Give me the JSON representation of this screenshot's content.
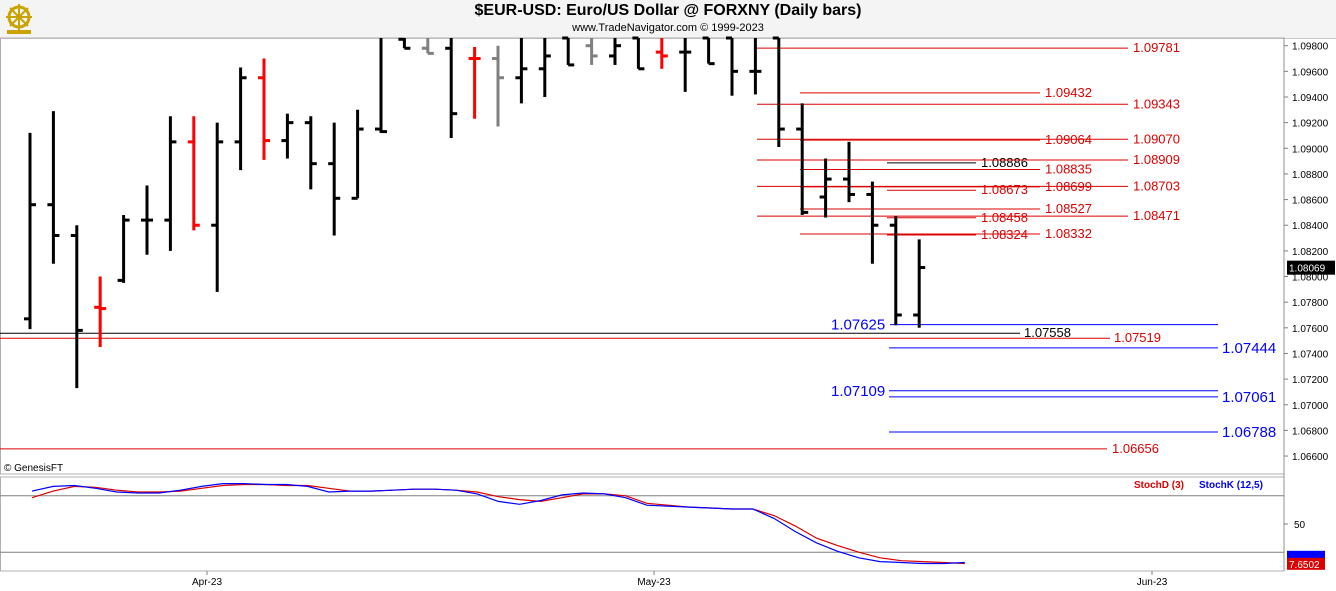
{
  "header": {
    "title": "$EUR-USD:  Euro/US Dollar @ FORXNY  (Daily bars)",
    "subtitle": "www.TradeNavigator.com © 1999-2023",
    "logo_icon": "ship-wheel-icon"
  },
  "copyright": "© GenesisFT",
  "colors": {
    "up": "#000000",
    "down": "#ff0000",
    "neutral": "#808080",
    "blue": "#0000ff",
    "red": "#dd0000"
  },
  "chart_data": [
    {
      "type": "ohlc",
      "title": "$EUR-USD:  Euro/US Dollar @ FORXNY  (Daily bars)",
      "ylim": [
        1.0646,
        1.0986
      ],
      "y_ticks": [
        "1.09800",
        "1.09600",
        "1.09400",
        "1.09200",
        "1.09000",
        "1.08800",
        "1.08600",
        "1.08400",
        "1.08200",
        "1.08000",
        "1.07800",
        "1.07600",
        "1.07400",
        "1.07200",
        "1.07000",
        "1.06800",
        "1.06600"
      ],
      "last_price": "1.08069",
      "x_labels": [
        "Apr-23",
        "May-23",
        "Jun-23"
      ],
      "bars": [
        {
          "o": 1.0767,
          "h": 1.0912,
          "l": 1.0759,
          "c": 1.0856,
          "color": "up"
        },
        {
          "o": 1.0856,
          "h": 1.0929,
          "l": 1.081,
          "c": 1.0832,
          "color": "up"
        },
        {
          "o": 1.0832,
          "h": 1.084,
          "l": 1.0713,
          "c": 1.0758,
          "color": "up"
        },
        {
          "o": 1.0776,
          "h": 1.08,
          "l": 1.0745,
          "c": 1.0775,
          "color": "down"
        },
        {
          "o": 1.0797,
          "h": 1.0848,
          "l": 1.0795,
          "c": 1.0844,
          "color": "up"
        },
        {
          "o": 1.0844,
          "h": 1.0871,
          "l": 1.0817,
          "c": 1.0844,
          "color": "up"
        },
        {
          "o": 1.0844,
          "h": 1.0925,
          "l": 1.082,
          "c": 1.0905,
          "color": "up"
        },
        {
          "o": 1.0905,
          "h": 1.0925,
          "l": 1.0836,
          "c": 1.084,
          "color": "down"
        },
        {
          "o": 1.084,
          "h": 1.092,
          "l": 1.0788,
          "c": 1.0905,
          "color": "up"
        },
        {
          "o": 1.0905,
          "h": 1.0963,
          "l": 1.0883,
          "c": 1.0955,
          "color": "up"
        },
        {
          "o": 1.0955,
          "h": 1.097,
          "l": 1.0891,
          "c": 1.0906,
          "color": "down"
        },
        {
          "o": 1.0906,
          "h": 1.0927,
          "l": 1.0892,
          "c": 1.092,
          "color": "up"
        },
        {
          "o": 1.092,
          "h": 1.0925,
          "l": 1.0868,
          "c": 1.0888,
          "color": "up"
        },
        {
          "o": 1.0888,
          "h": 1.092,
          "l": 1.0832,
          "c": 1.0861,
          "color": "up"
        },
        {
          "o": 1.0861,
          "h": 1.093,
          "l": 1.0861,
          "c": 1.0915,
          "color": "up"
        },
        {
          "o": 1.0915,
          "h": 1.0986,
          "l": 1.0912,
          "c": 1.0913,
          "color": "up"
        },
        {
          "o": 1.0985,
          "h": 1.0986,
          "l": 1.0978,
          "c": 1.0978,
          "color": "up"
        },
        {
          "o": 1.0978,
          "h": 1.0986,
          "l": 1.0974,
          "c": 1.0974,
          "color": "neutral"
        },
        {
          "o": 1.0978,
          "h": 1.0986,
          "l": 1.0908,
          "c": 1.0927,
          "color": "up"
        },
        {
          "o": 1.097,
          "h": 1.0979,
          "l": 1.0923,
          "c": 1.097,
          "color": "down"
        },
        {
          "o": 1.097,
          "h": 1.098,
          "l": 1.0917,
          "c": 1.0955,
          "color": "neutral"
        },
        {
          "o": 1.0955,
          "h": 1.0986,
          "l": 1.0935,
          "c": 1.0962,
          "color": "up"
        },
        {
          "o": 1.0962,
          "h": 1.0986,
          "l": 1.094,
          "c": 1.0972,
          "color": "up"
        },
        {
          "o": 1.0986,
          "h": 1.0986,
          "l": 1.0965,
          "c": 1.0965,
          "color": "up"
        },
        {
          "o": 1.098,
          "h": 1.0986,
          "l": 1.0965,
          "c": 1.0972,
          "color": "neutral"
        },
        {
          "o": 1.0972,
          "h": 1.0986,
          "l": 1.0965,
          "c": 1.098,
          "color": "up"
        },
        {
          "o": 1.0986,
          "h": 1.0986,
          "l": 1.0962,
          "c": 1.0962,
          "color": "up"
        },
        {
          "o": 1.0975,
          "h": 1.0986,
          "l": 1.0962,
          "c": 1.0972,
          "color": "down"
        },
        {
          "o": 1.0975,
          "h": 1.0986,
          "l": 1.0944,
          "c": 1.0975,
          "color": "up"
        },
        {
          "o": 1.0986,
          "h": 1.0986,
          "l": 1.0966,
          "c": 1.0966,
          "color": "up"
        },
        {
          "o": 1.0986,
          "h": 1.0986,
          "l": 1.0941,
          "c": 1.096,
          "color": "up"
        },
        {
          "o": 1.096,
          "h": 1.0986,
          "l": 1.0942,
          "c": 1.096,
          "color": "up"
        },
        {
          "o": 1.0986,
          "h": 1.0986,
          "l": 1.0901,
          "c": 1.0915,
          "color": "up"
        },
        {
          "o": 1.0915,
          "h": 1.0935,
          "l": 1.0848,
          "c": 1.085,
          "color": "up"
        },
        {
          "o": 1.0862,
          "h": 1.0892,
          "l": 1.0846,
          "c": 1.0876,
          "color": "up"
        },
        {
          "o": 1.0876,
          "h": 1.0905,
          "l": 1.0858,
          "c": 1.0864,
          "color": "up"
        },
        {
          "o": 1.0864,
          "h": 1.0874,
          "l": 1.081,
          "c": 1.084,
          "color": "up"
        },
        {
          "o": 1.084,
          "h": 1.0847,
          "l": 1.0762,
          "c": 1.077,
          "color": "up"
        },
        {
          "o": 1.077,
          "h": 1.0829,
          "l": 1.076,
          "c": 1.0807,
          "color": "up"
        }
      ],
      "levels": [
        {
          "price": 1.09781,
          "label": "1.09781",
          "color": "red"
        },
        {
          "price": 1.09432,
          "label": "1.09432",
          "color": "red"
        },
        {
          "price": 1.09343,
          "label": "1.09343",
          "color": "red"
        },
        {
          "price": 1.09064,
          "label": "1.09064",
          "color": "red"
        },
        {
          "price": 1.0907,
          "label": "1.09070",
          "color": "red"
        },
        {
          "price": 1.08886,
          "label": "1.08886",
          "color": "black"
        },
        {
          "price": 1.08909,
          "label": "1.08909",
          "color": "red"
        },
        {
          "price": 1.08835,
          "label": "1.08835",
          "color": "red"
        },
        {
          "price": 1.08673,
          "label": "1.08673",
          "color": "red"
        },
        {
          "price": 1.08699,
          "label": "1.08699",
          "color": "red"
        },
        {
          "price": 1.08703,
          "label": "1.08703",
          "color": "red"
        },
        {
          "price": 1.08527,
          "label": "1.08527",
          "color": "red"
        },
        {
          "price": 1.08458,
          "label": "1.08458",
          "color": "red"
        },
        {
          "price": 1.08471,
          "label": "1.08471",
          "color": "red"
        },
        {
          "price": 1.08324,
          "label": "1.08324",
          "color": "red"
        },
        {
          "price": 1.08332,
          "label": "1.08332",
          "color": "red"
        },
        {
          "price": 1.07625,
          "label": "1.07625",
          "color": "blue"
        },
        {
          "price": 1.07558,
          "label": "1.07558",
          "color": "black"
        },
        {
          "price": 1.07519,
          "label": "1.07519",
          "color": "red"
        },
        {
          "price": 1.07444,
          "label": "1.07444",
          "color": "blue"
        },
        {
          "price": 1.07109,
          "label": "1.07109",
          "color": "blue"
        },
        {
          "price": 1.07061,
          "label": "1.07061",
          "color": "blue"
        },
        {
          "price": 1.06788,
          "label": "1.06788",
          "color": "blue"
        },
        {
          "price": 1.06656,
          "label": "1.06656",
          "color": "red"
        }
      ]
    },
    {
      "type": "line",
      "ylim": [
        0,
        100
      ],
      "y_ticks": [
        "50"
      ],
      "legend": [
        "StochD (3)",
        "StochK (12,5)"
      ],
      "last_value": "7.6502",
      "series": [
        {
          "name": "StochD (3)",
          "color": "red",
          "values": [
            78,
            85,
            90,
            89,
            86,
            84,
            84,
            85,
            88,
            91,
            92,
            92,
            91,
            91,
            88,
            85,
            85,
            86,
            87,
            87,
            86,
            84,
            79,
            76,
            74,
            78,
            82,
            82,
            80,
            72,
            70,
            68,
            67,
            66,
            66,
            59,
            48,
            35,
            27,
            20,
            14,
            11,
            10,
            9,
            8
          ]
        },
        {
          "name": "StochK (12,5)",
          "color": "blue",
          "values": [
            85,
            90,
            91,
            88,
            84,
            83,
            83,
            86,
            90,
            93,
            93,
            92,
            92,
            90,
            84,
            85,
            85,
            86,
            87,
            87,
            86,
            82,
            74,
            71,
            75,
            81,
            83,
            82,
            78,
            70,
            69,
            68,
            67,
            66,
            66,
            56,
            42,
            30,
            21,
            14,
            10,
            9,
            8,
            8,
            9
          ]
        }
      ]
    }
  ]
}
